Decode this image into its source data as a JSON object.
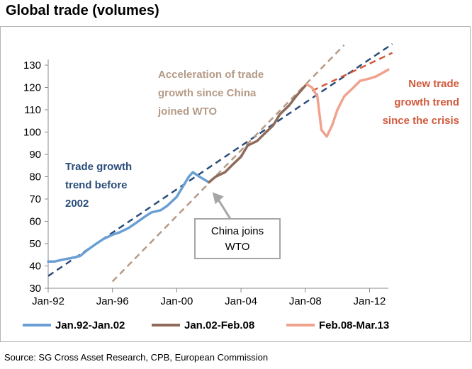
{
  "title": "Global trade (volumes)",
  "source": "Source: SG Cross Asset Research, CPB, European Commission",
  "colors": {
    "pre2002": "#6a9fd4",
    "pre2002_trend": "#2a4d7a",
    "china_era": "#8e6b5a",
    "china_trend": "#b59a86",
    "post_crisis": "#f0a28e",
    "crisis_trend": "#d2593c",
    "axis": "#8a8a8a"
  },
  "chart_data": {
    "type": "line",
    "title": "Global trade (volumes)",
    "xlabel": "",
    "ylabel": "",
    "x_ticks": [
      "Jan-92",
      "Jan-96",
      "Jan-00",
      "Jan-04",
      "Jan-08",
      "Jan-12"
    ],
    "y_ticks": [
      30,
      40,
      50,
      60,
      70,
      80,
      90,
      100,
      110,
      120,
      130
    ],
    "ylim": [
      30,
      130
    ],
    "xlim": [
      "Jan-92",
      "Mar-13"
    ],
    "grid": false,
    "legend_position": "bottom",
    "series": [
      {
        "name": "Jan.92-Jan.02",
        "color": "#6a9fd4",
        "points": [
          [
            "1992-01",
            42
          ],
          [
            "1992-06",
            42
          ],
          [
            "1993-01",
            43
          ],
          [
            "1993-06",
            43.5
          ],
          [
            "1994-01",
            44.5
          ],
          [
            "1994-06",
            47
          ],
          [
            "1995-01",
            50
          ],
          [
            "1995-06",
            52
          ],
          [
            "1996-01",
            54
          ],
          [
            "1996-06",
            55
          ],
          [
            "1997-01",
            57
          ],
          [
            "1997-06",
            59
          ],
          [
            "1998-01",
            62
          ],
          [
            "1998-06",
            64
          ],
          [
            "1999-01",
            65
          ],
          [
            "1999-06",
            67
          ],
          [
            "2000-01",
            71
          ],
          [
            "2000-06",
            76
          ],
          [
            "2000-10",
            80
          ],
          [
            "2001-01",
            82
          ],
          [
            "2001-06",
            80
          ],
          [
            "2002-01",
            77.5
          ]
        ]
      },
      {
        "name": "Jan.02-Feb.08",
        "color": "#8e6b5a",
        "points": [
          [
            "2002-01",
            77.5
          ],
          [
            "2002-06",
            80
          ],
          [
            "2003-01",
            82
          ],
          [
            "2003-06",
            85
          ],
          [
            "2004-01",
            89
          ],
          [
            "2004-06",
            94
          ],
          [
            "2005-01",
            96
          ],
          [
            "2005-06",
            99
          ],
          [
            "2006-01",
            103
          ],
          [
            "2006-06",
            108
          ],
          [
            "2007-01",
            112
          ],
          [
            "2007-06",
            116
          ],
          [
            "2008-02",
            121.5
          ]
        ]
      },
      {
        "name": "Feb.08-Mar.13",
        "color": "#f0a28e",
        "points": [
          [
            "2008-02",
            121.5
          ],
          [
            "2008-06",
            120
          ],
          [
            "2008-10",
            116
          ],
          [
            "2009-01",
            101
          ],
          [
            "2009-05",
            98
          ],
          [
            "2009-09",
            103
          ],
          [
            "2010-01",
            110
          ],
          [
            "2010-06",
            116
          ],
          [
            "2011-01",
            120
          ],
          [
            "2011-06",
            123
          ],
          [
            "2012-01",
            124
          ],
          [
            "2012-06",
            125
          ],
          [
            "2013-03",
            128
          ]
        ]
      }
    ],
    "trendlines": [
      {
        "label": "Trade growth trend before 2002",
        "color": "#2a4d7a",
        "from": [
          "1992-01",
          35.5
        ],
        "to": [
          "2013-06",
          139.5
        ]
      },
      {
        "label": "Acceleration of trade growth since China joined WTO",
        "color": "#b59a86",
        "from": [
          "1996-01",
          33
        ],
        "to": [
          "2010-06",
          139
        ]
      },
      {
        "label": "New trade growth trend since the crisis",
        "color": "#d2593c",
        "from": [
          "2008-06",
          118.5
        ],
        "to": [
          "2013-06",
          135.5
        ]
      }
    ],
    "annotations": [
      {
        "lines": [
          "Trade growth",
          "trend before",
          "2002"
        ],
        "color": "#2a4d7a",
        "align": "left"
      },
      {
        "lines": [
          "Acceleration of trade",
          "growth since China",
          "joined WTO"
        ],
        "color": "#b59a86",
        "align": "left"
      },
      {
        "lines": [
          "New trade",
          "growth trend",
          "since the crisis"
        ],
        "color": "#d2593c",
        "align": "right"
      },
      {
        "lines": [
          "China joins",
          "WTO"
        ],
        "color": "#000000",
        "boxed": true,
        "arrow_to": [
          "2002-01",
          77.5
        ]
      }
    ]
  }
}
